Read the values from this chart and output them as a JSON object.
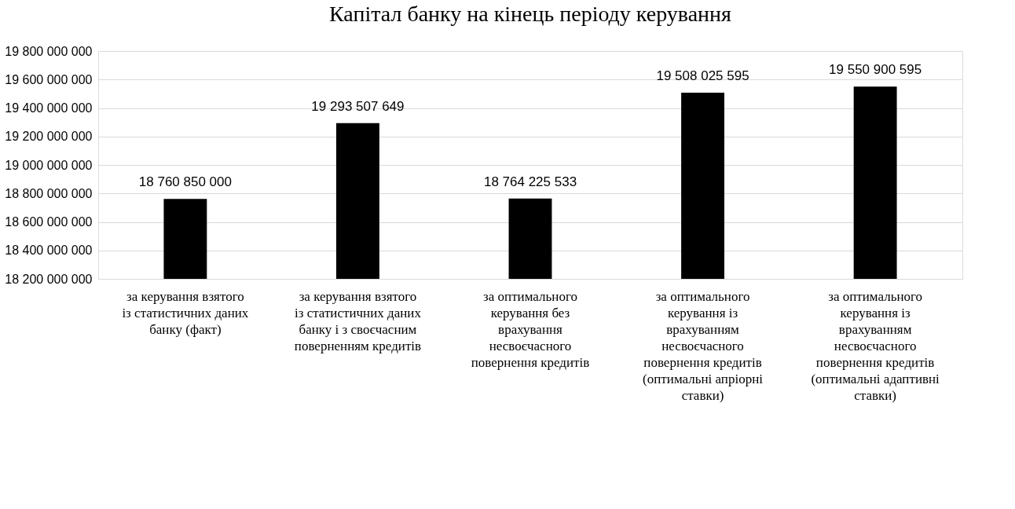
{
  "chart_data": {
    "type": "bar",
    "title": "Капітал банку на кінець періоду керування",
    "categories": [
      "за керування взятого із статистичних даних банку (факт)",
      "за керування взятого із статистичних даних банку і з своєчасним поверненням кредитів",
      "за оптимального керування без врахування несвоєчасного повернення кредитів",
      "за оптимального керування із врахуванням несвоєчасного повернення кредитів (оптимальні апріорні ставки)",
      "за оптимального керування із врахуванням несвоєчасного повернення кредитів (оптимальні адаптивні ставки)"
    ],
    "values": [
      18760850000,
      19293507649,
      18764225533,
      19508025595,
      19550900595
    ],
    "value_labels": [
      "18 760 850 000",
      "19 293 507 649",
      "18 764 225 533",
      "19 508 025 595",
      "19 550 900 595"
    ],
    "color": "#000000",
    "ylim": [
      18200000000,
      19800000000
    ],
    "yticks": [
      {
        "value": 18200000000,
        "label": "18 200 000 000"
      },
      {
        "value": 18400000000,
        "label": "18 400 000 000"
      },
      {
        "value": 18600000000,
        "label": "18 600 000 000"
      },
      {
        "value": 18800000000,
        "label": "18 800 000 000"
      },
      {
        "value": 19000000000,
        "label": "19 000 000 000"
      },
      {
        "value": 19200000000,
        "label": "19 200 000 000"
      },
      {
        "value": 19400000000,
        "label": "19 400 000 000"
      },
      {
        "value": 19600000000,
        "label": "19 600 000 000"
      },
      {
        "value": 19800000000,
        "label": "19 800 000 000"
      }
    ],
    "grid": "y"
  }
}
